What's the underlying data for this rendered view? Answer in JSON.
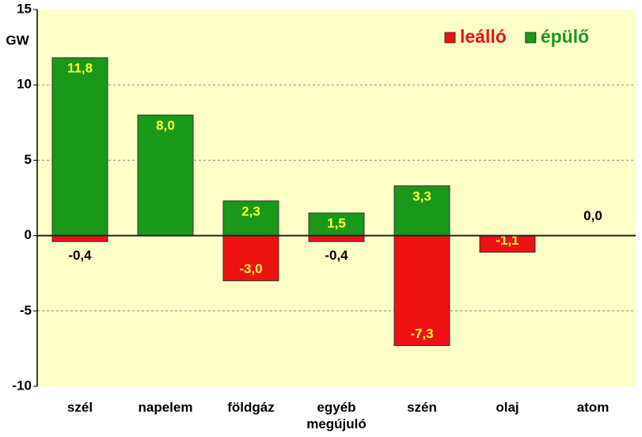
{
  "chart_data": {
    "type": "bar",
    "y_label": "GW",
    "categories": [
      "szél",
      "napelem",
      "földgáz",
      "egyéb megújuló",
      "szén",
      "olaj",
      "atom"
    ],
    "series": [
      {
        "name": "leálló",
        "color": "#ee1111",
        "values": [
          -0.4,
          null,
          -3.0,
          -0.4,
          -7.3,
          -1.1,
          null
        ],
        "value_labels": [
          "-0,4",
          null,
          "-3,0",
          "-0,4",
          "-7,3",
          "-1,1",
          null
        ]
      },
      {
        "name": "épülő",
        "color": "#1a981a",
        "values": [
          11.8,
          8.0,
          2.3,
          1.5,
          3.3,
          null,
          0.0
        ],
        "value_labels": [
          "11,8",
          "8,0",
          "2,3",
          "1,5",
          "3,3",
          null,
          "0,0"
        ]
      }
    ],
    "ylim": [
      -10,
      15
    ],
    "yticks": [
      -10,
      -5,
      0,
      5,
      10,
      15
    ],
    "grid": true,
    "legend": "top-right"
  }
}
